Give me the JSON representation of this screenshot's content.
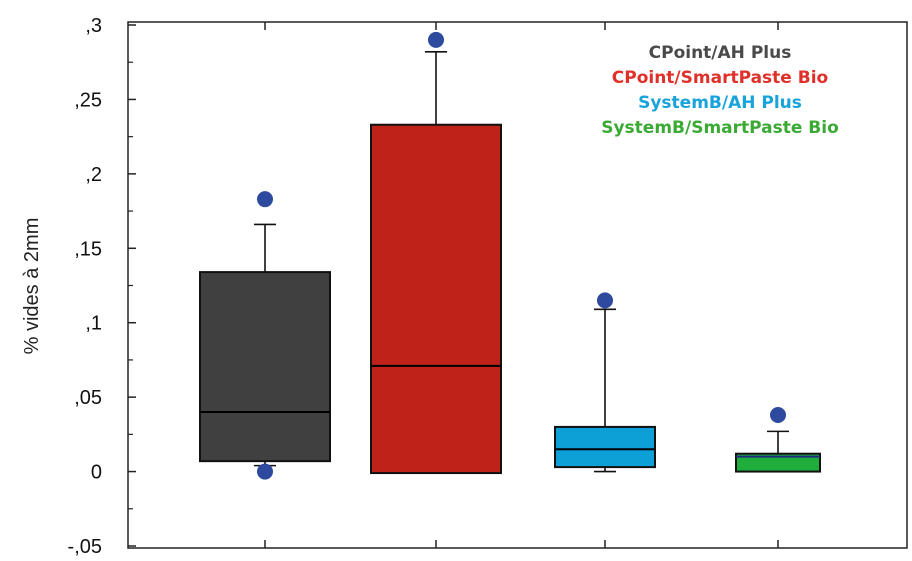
{
  "chart_data": {
    "type": "box",
    "ylabel": "% vides à 2mm",
    "ylim": [
      -0.05,
      0.3
    ],
    "y_ticks": [
      {
        "value": 0.3,
        "label": ",3"
      },
      {
        "value": 0.25,
        "label": ",25"
      },
      {
        "value": 0.2,
        "label": ",2"
      },
      {
        "value": 0.15,
        "label": ",15"
      },
      {
        "value": 0.1,
        "label": ",1"
      },
      {
        "value": 0.05,
        "label": ",05"
      },
      {
        "value": 0,
        "label": "0"
      },
      {
        "value": -0.05,
        "label": "-,05"
      }
    ],
    "grid": false,
    "legend_position": "top-right",
    "series": [
      {
        "name": "CPoint/AH Plus",
        "color": "#404040",
        "median_color": "#000000",
        "whisker_low": 0.004,
        "q1": 0.007,
        "median": 0.04,
        "q3": 0.134,
        "whisker_high": 0.166,
        "outliers": [
          0.183,
          0.0
        ]
      },
      {
        "name": "CPoint/SmartPaste Bio",
        "color": "#be2219",
        "median_color": "#000000",
        "whisker_low": -0.001,
        "q1": -0.001,
        "median": 0.071,
        "q3": 0.233,
        "whisker_high": 0.282,
        "outliers": [
          0.29
        ]
      },
      {
        "name": "SystemB/AH Plus",
        "color": "#0ca0d6",
        "median_color": "#000000",
        "whisker_low": 0.0,
        "q1": 0.003,
        "median": 0.015,
        "q3": 0.03,
        "whisker_high": 0.109,
        "outliers": [
          0.115
        ]
      },
      {
        "name": "SystemB/SmartPaste Bio",
        "color": "#1fae3c",
        "median_color": "#1f2d80",
        "whisker_low": 0.0,
        "q1": 0.0,
        "median": 0.01,
        "q3": 0.012,
        "whisker_high": 0.027,
        "outliers": [
          0.038
        ]
      }
    ],
    "legend": [
      {
        "label": "CPoint/AH Plus",
        "color": "#4a4a4a"
      },
      {
        "label": "CPoint/SmartPaste Bio",
        "color": "#e0302a"
      },
      {
        "label": "SystemB/AH Plus",
        "color": "#19a3db"
      },
      {
        "label": "SystemB/SmartPaste Bio",
        "color": "#3aaa35"
      }
    ],
    "outlier_color": "#2e4a9e"
  }
}
